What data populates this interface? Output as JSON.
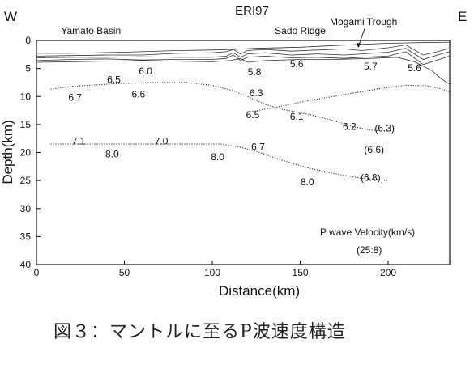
{
  "caption": "図３：マントルに至るP波速度構造",
  "chart_data": {
    "type": "line",
    "title": "ERI97",
    "xlabel": "Distance(km)",
    "ylabel": "Depth(km)",
    "xlim": [
      0,
      235
    ],
    "ylim": [
      40,
      0
    ],
    "y_inverted": true,
    "xticks": [
      0,
      50,
      100,
      150,
      200
    ],
    "yticks": [
      0,
      5,
      10,
      15,
      20,
      25,
      30,
      35,
      40
    ],
    "side_labels": {
      "left": "W",
      "right": "E"
    },
    "features": [
      {
        "name": "Yamato Basin",
        "x": 31
      },
      {
        "name": "Sado Ridge",
        "x": 150
      },
      {
        "name": "Mogami Trough",
        "x": 186,
        "arrow_to": 183
      }
    ],
    "legend_note": {
      "line1": "P wave Velocity(km/s)",
      "line2": "(25:8)"
    },
    "velocity_labels": [
      {
        "text": "6.0",
        "x": 62,
        "y": 5.5
      },
      {
        "text": "5.8",
        "x": 124,
        "y": 5.6
      },
      {
        "text": "5.6",
        "x": 148,
        "y": 4.2
      },
      {
        "text": "5.7",
        "x": 190,
        "y": 4.6
      },
      {
        "text": "5.6",
        "x": 215,
        "y": 4.9
      },
      {
        "text": "6.5",
        "x": 44,
        "y": 7.0
      },
      {
        "text": "6.7",
        "x": 22,
        "y": 10.2
      },
      {
        "text": "6.6",
        "x": 58,
        "y": 9.6
      },
      {
        "text": "6.3",
        "x": 125,
        "y": 9.4
      },
      {
        "text": "6.5",
        "x": 123,
        "y": 13.3
      },
      {
        "text": "6.1",
        "x": 148,
        "y": 13.6
      },
      {
        "text": "6.2",
        "x": 178,
        "y": 15.4
      },
      {
        "text": "(6.3)",
        "x": 198,
        "y": 15.7
      },
      {
        "text": "(6.6)",
        "x": 192,
        "y": 19.5
      },
      {
        "text": "7.1",
        "x": 24,
        "y": 18.0
      },
      {
        "text": "7.0",
        "x": 71,
        "y": 18.0
      },
      {
        "text": "8.0",
        "x": 43,
        "y": 20.3
      },
      {
        "text": "8.0",
        "x": 103,
        "y": 20.8
      },
      {
        "text": "6.7",
        "x": 126,
        "y": 19.0
      },
      {
        "text": "8.0",
        "x": 154,
        "y": 25.3
      },
      {
        "text": "(6.8)",
        "x": 190,
        "y": 24.5
      }
    ],
    "series": [
      {
        "style": "solid",
        "points": [
          [
            0,
            2.3
          ],
          [
            20,
            2.3
          ],
          [
            50,
            2.1
          ],
          [
            80,
            1.8
          ],
          [
            100,
            1.7
          ],
          [
            110,
            1.6
          ],
          [
            125,
            1.4
          ],
          [
            150,
            1.2
          ],
          [
            170,
            0.9
          ],
          [
            185,
            0.7
          ],
          [
            200,
            0.5
          ],
          [
            215,
            0.4
          ],
          [
            235,
            0.3
          ]
        ]
      },
      {
        "style": "solid",
        "points": [
          [
            0,
            2.8
          ],
          [
            20,
            2.7
          ],
          [
            40,
            2.6
          ],
          [
            60,
            2.6
          ],
          [
            80,
            2.3
          ],
          [
            100,
            2.2
          ],
          [
            108,
            2.0
          ],
          [
            112,
            1.6
          ],
          [
            116,
            2.4
          ],
          [
            120,
            1.8
          ],
          [
            130,
            1.6
          ],
          [
            145,
            1.9
          ],
          [
            160,
            1.7
          ],
          [
            175,
            1.5
          ],
          [
            185,
            1.8
          ],
          [
            200,
            1.3
          ],
          [
            210,
            0.8
          ],
          [
            220,
            2.6
          ],
          [
            228,
            2.0
          ],
          [
            235,
            1.4
          ]
        ]
      },
      {
        "style": "solid",
        "points": [
          [
            0,
            3.1
          ],
          [
            20,
            3.0
          ],
          [
            40,
            3.0
          ],
          [
            60,
            2.9
          ],
          [
            80,
            3.0
          ],
          [
            100,
            3.0
          ],
          [
            108,
            2.8
          ],
          [
            112,
            2.2
          ],
          [
            116,
            3.0
          ],
          [
            120,
            2.4
          ],
          [
            130,
            2.2
          ],
          [
            145,
            2.6
          ],
          [
            160,
            2.4
          ],
          [
            175,
            2.6
          ],
          [
            185,
            2.4
          ],
          [
            200,
            2.1
          ],
          [
            210,
            1.4
          ],
          [
            220,
            3.4
          ],
          [
            228,
            2.6
          ],
          [
            235,
            2.0
          ]
        ]
      },
      {
        "style": "solid",
        "points": [
          [
            0,
            3.6
          ],
          [
            20,
            3.4
          ],
          [
            40,
            3.3
          ],
          [
            60,
            3.5
          ],
          [
            80,
            3.4
          ],
          [
            100,
            3.4
          ],
          [
            108,
            3.2
          ],
          [
            112,
            2.6
          ],
          [
            116,
            3.6
          ],
          [
            120,
            3.0
          ],
          [
            130,
            2.8
          ],
          [
            145,
            3.1
          ],
          [
            160,
            3.0
          ],
          [
            175,
            3.2
          ],
          [
            185,
            3.0
          ],
          [
            200,
            2.8
          ],
          [
            210,
            2.0
          ],
          [
            220,
            4.3
          ],
          [
            228,
            3.5
          ],
          [
            235,
            2.8
          ]
        ]
      },
      {
        "style": "solid",
        "points": [
          [
            0,
            3.9
          ],
          [
            20,
            3.8
          ],
          [
            40,
            3.7
          ],
          [
            60,
            3.6
          ],
          [
            80,
            3.7
          ],
          [
            100,
            3.8
          ],
          [
            110,
            3.6
          ],
          [
            116,
            3.2
          ],
          [
            120,
            3.9
          ],
          [
            130,
            3.6
          ],
          [
            150,
            3.4
          ],
          [
            170,
            3.4
          ],
          [
            190,
            3.2
          ],
          [
            205,
            3.0
          ],
          [
            215,
            3.8
          ],
          [
            225,
            5.4
          ],
          [
            230,
            6.8
          ],
          [
            235,
            7.8
          ]
        ]
      },
      {
        "style": "dotted",
        "points": [
          [
            8,
            8.7
          ],
          [
            20,
            8.2
          ],
          [
            40,
            7.8
          ],
          [
            55,
            7.6
          ],
          [
            70,
            7.5
          ],
          [
            85,
            7.5
          ],
          [
            100,
            8.0
          ],
          [
            112,
            9.0
          ],
          [
            120,
            10.0
          ],
          [
            130,
            11.4
          ],
          [
            140,
            12.3
          ],
          [
            155,
            13.2
          ],
          [
            170,
            14.4
          ],
          [
            180,
            15.4
          ],
          [
            190,
            16.0
          ],
          [
            200,
            16.2
          ]
        ]
      },
      {
        "style": "dotted",
        "points": [
          [
            120,
            12.8
          ],
          [
            135,
            12.0
          ],
          [
            150,
            11.0
          ],
          [
            165,
            10.2
          ],
          [
            180,
            9.4
          ],
          [
            195,
            8.6
          ],
          [
            210,
            8.0
          ],
          [
            222,
            8.1
          ],
          [
            230,
            8.6
          ],
          [
            235,
            9.2
          ]
        ]
      },
      {
        "style": "dotted",
        "points": [
          [
            8,
            18.5
          ],
          [
            30,
            18.5
          ],
          [
            60,
            18.5
          ],
          [
            90,
            18.5
          ],
          [
            105,
            18.5
          ],
          [
            115,
            19.0
          ],
          [
            125,
            19.8
          ],
          [
            140,
            21.4
          ],
          [
            155,
            22.8
          ],
          [
            170,
            23.8
          ],
          [
            185,
            24.6
          ],
          [
            200,
            25.0
          ]
        ]
      }
    ],
    "grid": false,
    "legend": "none"
  }
}
